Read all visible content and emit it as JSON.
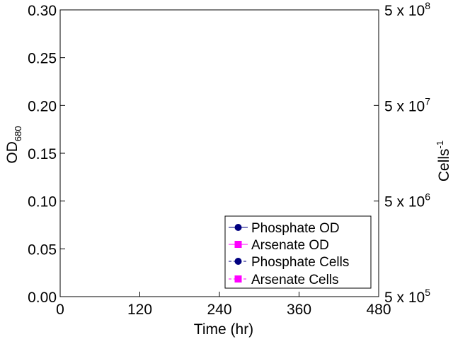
{
  "chart_data": {
    "type": "line",
    "xlabel": "Time (hr)",
    "ylabel_left": {
      "main": "OD",
      "subscript": "680"
    },
    "ylabel_right": {
      "main": "Cells",
      "superscript": "-1"
    },
    "x_ticks": [
      "0",
      "120",
      "240",
      "360",
      "480"
    ],
    "x_tick_values": [
      0,
      120,
      240,
      360,
      480
    ],
    "xlim": [
      0,
      480
    ],
    "y_left_ticks": [
      "0.00",
      "0.05",
      "0.10",
      "0.15",
      "0.20",
      "0.25",
      "0.30"
    ],
    "y_left_tick_values": [
      0,
      0.05,
      0.1,
      0.15,
      0.2,
      0.25,
      0.3
    ],
    "ylim_left": [
      0,
      0.3
    ],
    "y_right_scale": "log",
    "y_right_ticks": [
      {
        "mantissa": "5 x 10",
        "exponent": "5",
        "value": 500000
      },
      {
        "mantissa": "5 x 10",
        "exponent": "6",
        "value": 5000000
      },
      {
        "mantissa": "5 x 10",
        "exponent": "7",
        "value": 50000000
      },
      {
        "mantissa": "5 x 10",
        "exponent": "8",
        "value": 500000000
      }
    ],
    "ylim_right": [
      500000,
      500000000
    ],
    "grid": false,
    "legend_position": "bottom-right",
    "series": [
      {
        "name": "Phosphate OD",
        "color": "#000080",
        "marker": "circle",
        "points": []
      },
      {
        "name": "Arsenate OD",
        "color": "#FF00FF",
        "marker": "square",
        "points": []
      },
      {
        "name": "Phosphate Cells",
        "color": "#000080",
        "marker": "circle",
        "points": []
      },
      {
        "name": "Arsenate Cells",
        "color": "#FF00FF",
        "marker": "square",
        "points": []
      }
    ]
  }
}
